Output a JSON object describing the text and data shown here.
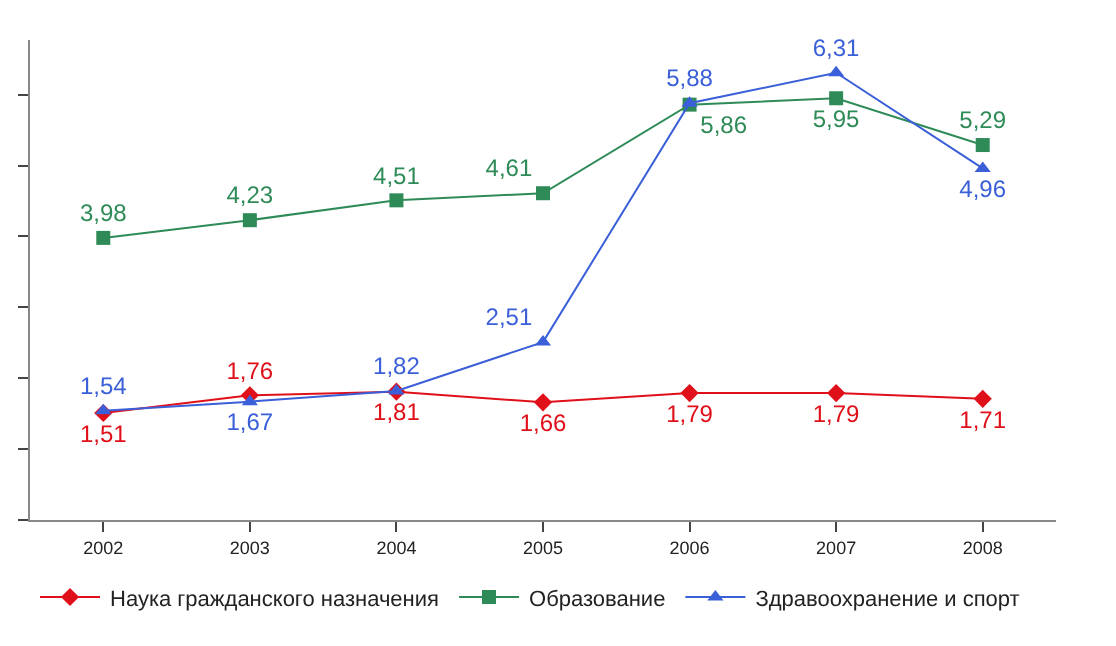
{
  "chart_data": {
    "type": "line",
    "categories": [
      "2002",
      "2003",
      "2004",
      "2005",
      "2006",
      "2007",
      "2008"
    ],
    "series": [
      {
        "name": "Наука гражданского назначения",
        "color": "#e0101a",
        "marker": "diamond",
        "values": [
          1.51,
          1.76,
          1.81,
          1.66,
          1.79,
          1.79,
          1.71
        ],
        "value_labels": [
          "1,51",
          "1,76",
          "1,81",
          "1,66",
          "1,79",
          "1,79",
          "1,71"
        ]
      },
      {
        "name": "Образование",
        "color": "#2e8b57",
        "marker": "square",
        "values": [
          3.98,
          4.23,
          4.51,
          4.61,
          5.86,
          5.95,
          5.29
        ],
        "value_labels": [
          "3,98",
          "4,23",
          "4,51",
          "4,61",
          "5,86",
          "5,95",
          "5,29"
        ]
      },
      {
        "name": "Здравоохранение и спорт",
        "color": "#3a5fd8",
        "marker": "triangle",
        "values": [
          1.54,
          1.67,
          1.82,
          2.51,
          5.88,
          6.31,
          4.96
        ],
        "value_labels": [
          "1,54",
          "1,67",
          "1,82",
          "2,51",
          "5,88",
          "6,31",
          "4,96"
        ]
      }
    ],
    "tick_labels": "x",
    "legend": "bottom"
  }
}
